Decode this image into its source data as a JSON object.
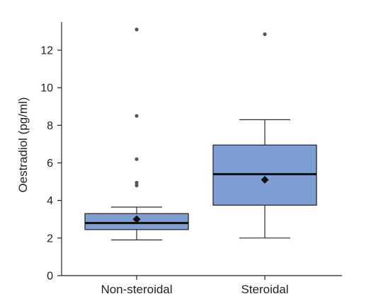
{
  "chart_data": {
    "type": "boxplot",
    "ylabel": "Oestradiol (pg/ml)",
    "xlabel": "",
    "ylim": [
      0,
      13.5
    ],
    "yticks": [
      0,
      2,
      4,
      6,
      8,
      10,
      12
    ],
    "categories": [
      "Non-steroidal",
      "Steroidal"
    ],
    "boxes": [
      {
        "name": "Non-steroidal",
        "whisker_low": 1.9,
        "q1": 2.45,
        "median": 2.8,
        "mean": 3.0,
        "q3": 3.3,
        "whisker_high": 3.65,
        "outliers": [
          4.8,
          4.95,
          6.2,
          8.5,
          13.1
        ]
      },
      {
        "name": "Steroidal",
        "whisker_low": 2.0,
        "q1": 3.75,
        "median": 5.4,
        "mean": 5.1,
        "q3": 6.95,
        "whisker_high": 8.3,
        "outliers": [
          12.85
        ]
      }
    ],
    "colors": {
      "box_fill": "#7e9fd6",
      "box_stroke": "#2a2a2a",
      "median": "#111111",
      "outlier": "#555555",
      "axis": "#222222"
    }
  }
}
